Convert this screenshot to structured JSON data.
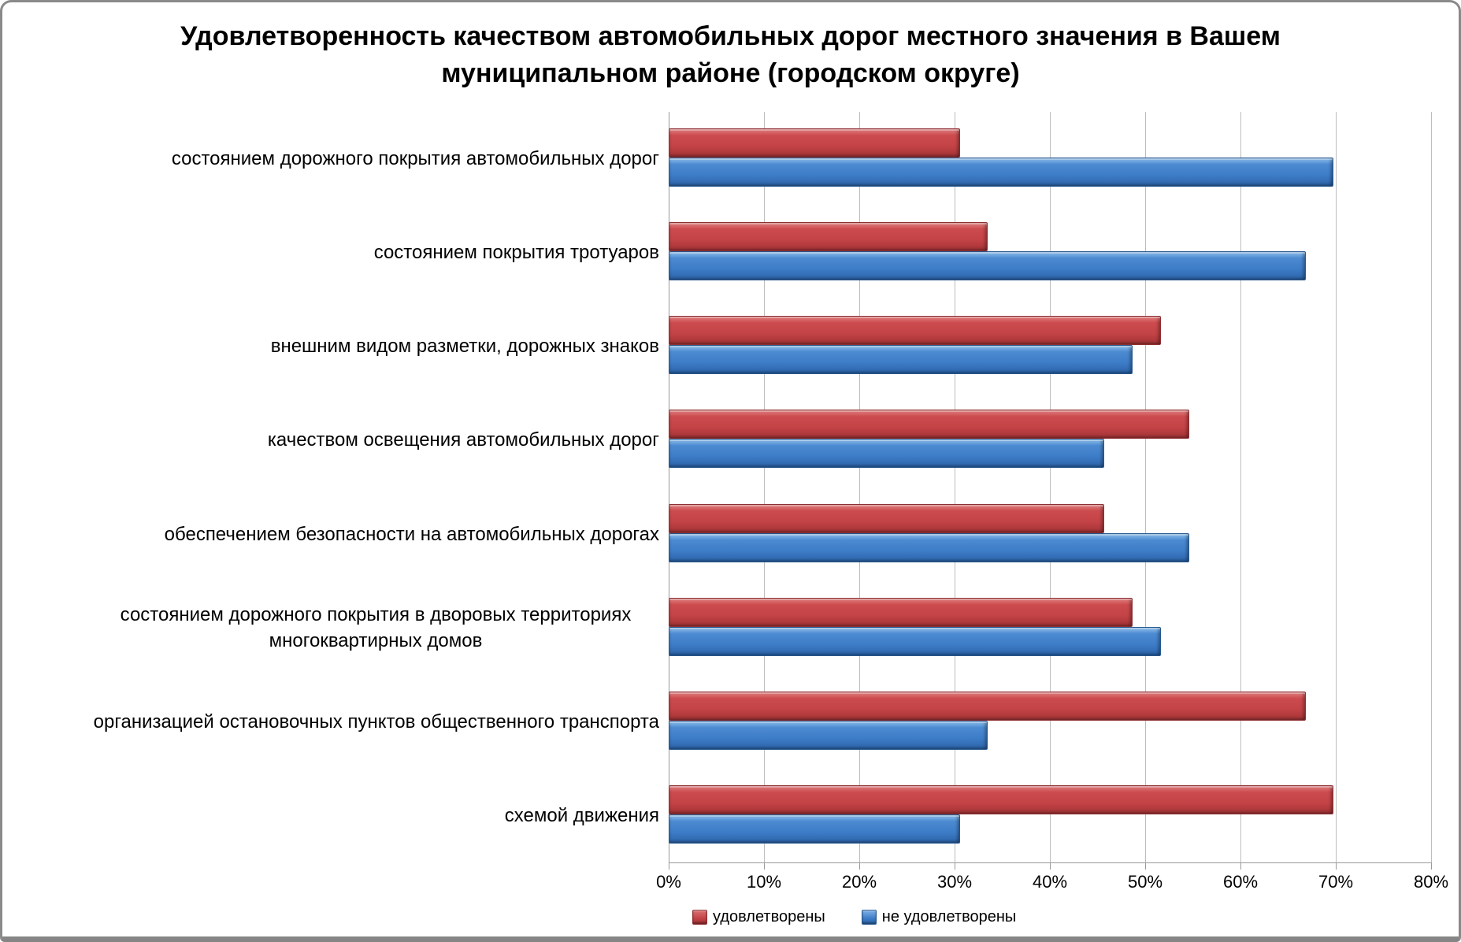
{
  "frame": {
    "background": "#ffffff",
    "border_color": "#8a8a8a"
  },
  "chart_data": {
    "type": "bar",
    "orientation": "horizontal",
    "title": "Удовлетворенность качеством автомобильных дорог местного значения в Вашем муниципальном районе (городском округе)",
    "title_lines": [
      "Удовлетворенность качеством автомобильных дорог местного значения в Вашем",
      "муниципальном районе (городском округе)"
    ],
    "categories": [
      "состоянием дорожного покрытия автомобильных дорог",
      "состоянием покрытия тротуаров",
      "внешним видом разметки, дорожных знаков",
      "качеством освещения автомобильных дорог",
      "обеспечением безопасности на автомобильных дорогах",
      "состоянием дорожного покрытия в дворовых территориях многоквартирных домов",
      "организацией остановочных пунктов общественного транспорта",
      "схемой движения"
    ],
    "series": [
      {
        "name": "удовлетворены",
        "color": "#C0504D",
        "values": [
          30.4,
          33.3,
          51.5,
          54.5,
          45.5,
          48.5,
          66.7,
          69.6
        ]
      },
      {
        "name": "не удовлетворены",
        "color": "#4F81BD",
        "values": [
          69.6,
          66.7,
          48.5,
          45.5,
          54.5,
          51.5,
          33.3,
          30.4
        ]
      }
    ],
    "x_axis": {
      "min": 0,
      "max": 80,
      "tick_step": 10,
      "ticks": [
        "0%",
        "10%",
        "20%",
        "30%",
        "40%",
        "50%",
        "60%",
        "70%",
        "80%"
      ],
      "unit": "%"
    },
    "legend": {
      "position": "bottom",
      "items": [
        "удовлетворены",
        "не удовлетворены"
      ]
    },
    "grid": true
  }
}
